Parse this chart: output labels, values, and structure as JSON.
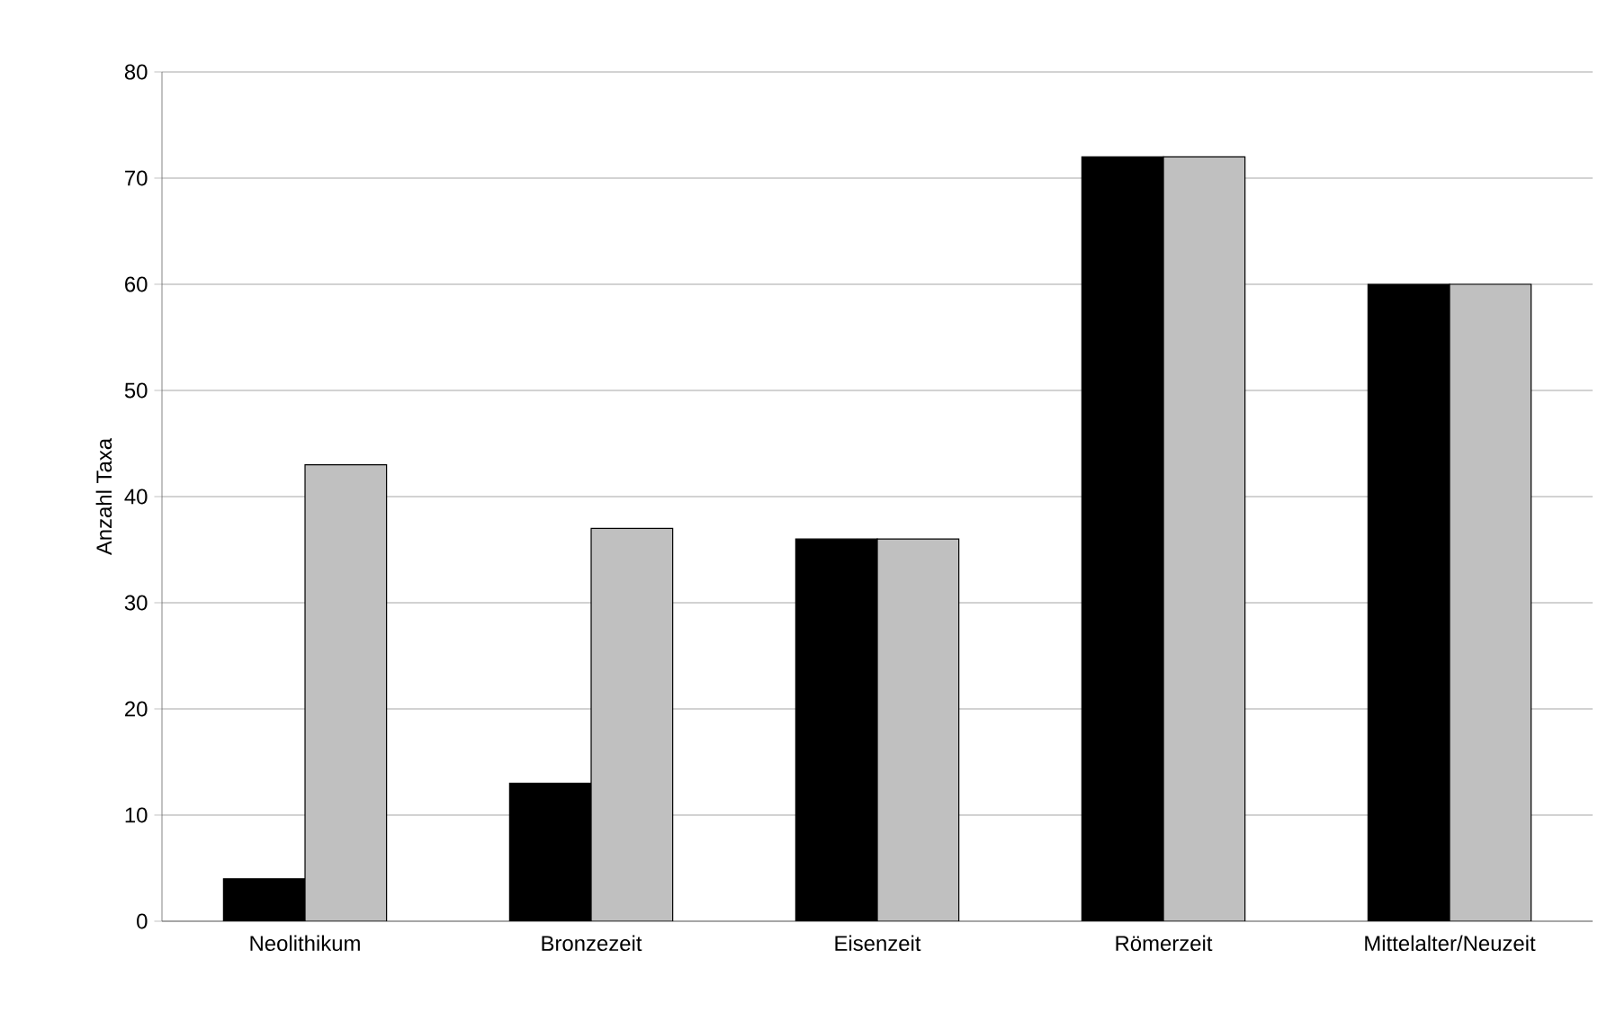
{
  "chart_data": {
    "type": "bar",
    "ylabel": "Anzahl Taxa",
    "categories": [
      "Neolithikum",
      "Bronzezeit",
      "Eisenzeit",
      "Römerzeit",
      "Mittelalter/Neuzeit"
    ],
    "series": [
      {
        "color": "#000000",
        "values": [
          4,
          13,
          36,
          72,
          60
        ]
      },
      {
        "color": "#c0c0c0",
        "values": [
          43,
          37,
          36,
          72,
          60
        ]
      }
    ],
    "ylim": [
      0,
      80
    ],
    "yticks": [
      0,
      10,
      20,
      30,
      40,
      50,
      60,
      70,
      80
    ],
    "grid": "y"
  }
}
